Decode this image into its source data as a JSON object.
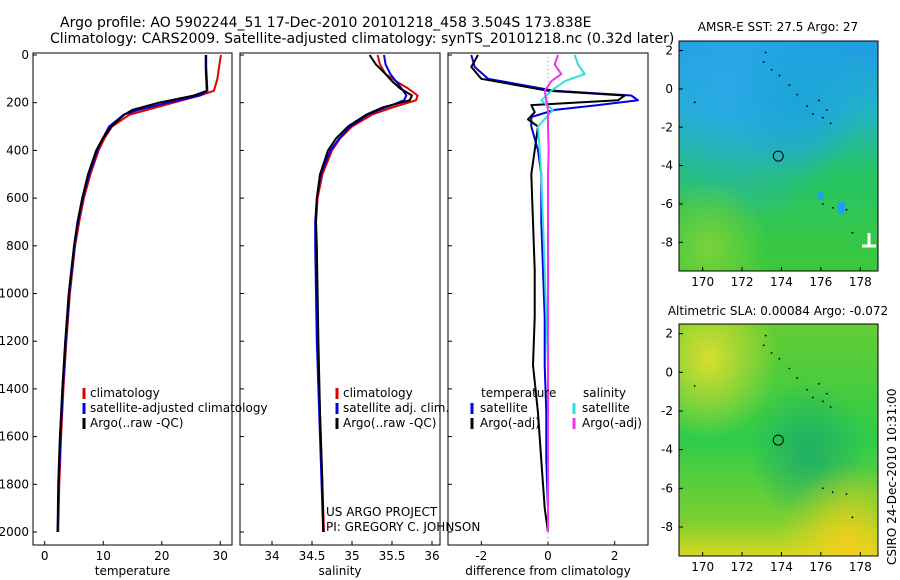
{
  "header": {
    "title_line1": "Argo profile: AO 5902244_51 17-Dec-2010 20101218_458 3.504S 173.838E",
    "title_line2": "Climatology: CARS2009. Satellite-adjusted climatology: synTS_20101218.nc (0.32d later)"
  },
  "credit": {
    "line1": "US ARGO PROJECT",
    "line2": "PI: GREGORY C. JOHNSON"
  },
  "footer_stamp": "CSIRO 24-Dec-2010 10:31:00",
  "colors": {
    "climatology": "#e00000",
    "satellite": "#0000e0",
    "argo": "#000000",
    "satellite_salinity": "#33dddd",
    "argo_salinity": "#ee33ee"
  },
  "chart_data": [
    {
      "type": "line",
      "name": "temperature-panel",
      "xlabel": "temperature",
      "ylabel": "",
      "xlim": [
        -2,
        32
      ],
      "ylim": [
        2050,
        0
      ],
      "xticks": [
        0,
        10,
        20,
        30
      ],
      "xtick_labels": [
        "0",
        "10",
        "20",
        "30"
      ],
      "yticks": [
        0,
        200,
        400,
        600,
        800,
        1000,
        1200,
        1400,
        1600,
        1800,
        2000
      ],
      "ytick_labels": [
        "0",
        "200",
        "400",
        "600",
        "800",
        "1000",
        "1200",
        "1400",
        "1600",
        "1800",
        "2000"
      ],
      "legend": [
        "climatology",
        "satellite-adjusted climatology",
        "Argo(..raw -QC)"
      ],
      "series": [
        {
          "name": "climatology",
          "color": "#e00000",
          "depth": [
            0,
            50,
            100,
            150,
            170,
            200,
            230,
            250,
            300,
            350,
            400,
            500,
            600,
            700,
            800,
            1000,
            1200,
            1400,
            1600,
            1800,
            2000
          ],
          "values": [
            30.1,
            29.8,
            29.5,
            28.9,
            26.5,
            22,
            17.5,
            14.5,
            11.5,
            10.2,
            9.2,
            7.8,
            6.7,
            5.9,
            5.2,
            4.3,
            3.7,
            3.2,
            2.8,
            2.5,
            2.3
          ]
        },
        {
          "name": "satellite",
          "color": "#0000e0",
          "depth": [
            0,
            50,
            100,
            150,
            170,
            200,
            230,
            250,
            300,
            350,
            400,
            500,
            600,
            700,
            800,
            1000,
            1200,
            1400,
            1600,
            1800,
            2000
          ],
          "values": [
            27.6,
            27.6,
            27.7,
            27.8,
            26.5,
            21,
            16,
            13.5,
            11,
            9.9,
            9,
            7.6,
            6.5,
            5.7,
            5.1,
            4.2,
            3.6,
            3.1,
            2.7,
            2.4,
            2.2
          ]
        },
        {
          "name": "Argo",
          "color": "#000000",
          "depth": [
            0,
            50,
            100,
            150,
            170,
            200,
            230,
            250,
            300,
            350,
            400,
            500,
            600,
            700,
            800,
            1000,
            1200,
            1400,
            1600,
            1800,
            2000
          ],
          "values": [
            27.5,
            27.5,
            27.6,
            27.7,
            25.5,
            19.5,
            15,
            13.6,
            11.4,
            9.9,
            8.8,
            7.4,
            6.4,
            5.6,
            5,
            4.1,
            3.5,
            3,
            2.6,
            2.3,
            2.2
          ]
        }
      ]
    },
    {
      "type": "line",
      "name": "salinity-panel",
      "xlabel": "salinity",
      "xlim": [
        33.6,
        36.1
      ],
      "ylim": [
        2050,
        0
      ],
      "xticks": [
        34,
        34.5,
        35,
        35.5,
        36
      ],
      "xtick_labels": [
        "34",
        "34.5",
        "35",
        "35.5",
        "36"
      ],
      "legend": [
        "climatology",
        "satellite adj. clim.",
        "Argo(..raw -QC)"
      ],
      "series": [
        {
          "name": "climatology",
          "color": "#e00000",
          "depth": [
            0,
            40,
            80,
            110,
            140,
            170,
            190,
            220,
            250,
            300,
            350,
            400,
            500,
            600,
            700,
            800,
            1000,
            1200,
            1500,
            1800,
            2000
          ],
          "values": [
            35.32,
            35.35,
            35.42,
            35.55,
            35.7,
            35.82,
            35.8,
            35.5,
            35.25,
            35.0,
            34.85,
            34.75,
            34.63,
            34.57,
            34.55,
            34.55,
            34.56,
            34.57,
            34.6,
            34.63,
            34.65
          ]
        },
        {
          "name": "satellite",
          "color": "#0000e0",
          "depth": [
            0,
            40,
            80,
            110,
            140,
            170,
            190,
            220,
            250,
            300,
            350,
            400,
            500,
            600,
            700,
            800,
            1000,
            1200,
            1500,
            1800,
            2000
          ],
          "values": [
            35.4,
            35.42,
            35.48,
            35.55,
            35.62,
            35.68,
            35.65,
            35.42,
            35.2,
            34.98,
            34.84,
            34.73,
            34.61,
            34.56,
            34.54,
            34.54,
            34.55,
            34.56,
            34.59,
            34.62,
            34.64
          ]
        },
        {
          "name": "Argo",
          "color": "#000000",
          "depth": [
            0,
            40,
            80,
            110,
            140,
            170,
            190,
            220,
            250,
            300,
            350,
            400,
            500,
            600,
            700,
            800,
            1000,
            1200,
            1500,
            1800,
            2000
          ],
          "values": [
            35.22,
            35.3,
            35.42,
            35.5,
            35.6,
            35.75,
            35.72,
            35.38,
            35.18,
            34.95,
            34.8,
            34.7,
            34.6,
            34.56,
            34.55,
            34.56,
            34.57,
            34.58,
            34.6,
            34.63,
            34.64
          ]
        }
      ]
    },
    {
      "type": "line",
      "name": "difference-panel",
      "xlabel": "difference from climatology",
      "xlim": [
        -3,
        3
      ],
      "ylim": [
        2050,
        0
      ],
      "xticks": [
        -2,
        0,
        2
      ],
      "xtick_labels": [
        "-2",
        "0",
        "2"
      ],
      "legend_headers": [
        "temperature",
        "salinity"
      ],
      "legend": [
        "satellite",
        "Argo(-adj)",
        "satellite",
        "Argo(-adj)"
      ],
      "series": [
        {
          "name": "temperature satellite",
          "color": "#0000e0",
          "depth": [
            0,
            50,
            100,
            150,
            170,
            190,
            210,
            230,
            260,
            300,
            400,
            500,
            700,
            900,
            1100,
            1300,
            1500,
            1700,
            1900,
            2000
          ],
          "values": [
            -2.3,
            -2.2,
            -1.8,
            0.2,
            2.5,
            2.7,
            1.5,
            0.2,
            -0.5,
            -0.5,
            -0.3,
            -0.2,
            -0.2,
            -0.15,
            -0.1,
            -0.1,
            -0.05,
            -0.05,
            0,
            0
          ]
        },
        {
          "name": "temperature Argo",
          "color": "#000000",
          "depth": [
            0,
            50,
            100,
            150,
            170,
            190,
            210,
            240,
            270,
            300,
            400,
            500,
            700,
            900,
            1100,
            1300,
            1500,
            1700,
            1900,
            2000
          ],
          "values": [
            -2.1,
            -2.3,
            -2.0,
            0.0,
            2.3,
            2.1,
            -0.5,
            -0.4,
            -0.6,
            -0.3,
            -0.4,
            -0.5,
            -0.45,
            -0.4,
            -0.4,
            -0.45,
            -0.3,
            -0.2,
            -0.1,
            0
          ]
        },
        {
          "name": "salinity satellite",
          "color": "#33dddd",
          "depth": [
            0,
            40,
            80,
            110,
            150,
            190,
            230,
            300,
            400,
            500,
            700,
            900,
            1100,
            1300,
            1500,
            1700,
            1900,
            2000
          ],
          "values": [
            0.8,
            0.9,
            1.1,
            0.5,
            0.1,
            -0.2,
            0.15,
            -0.3,
            -0.25,
            -0.2,
            -0.15,
            -0.1,
            -0.05,
            0,
            0,
            0,
            0,
            0
          ]
        },
        {
          "name": "salinity Argo",
          "color": "#ee33ee",
          "depth": [
            0,
            40,
            80,
            110,
            150,
            190,
            230,
            300,
            400,
            500,
            700,
            900,
            1100,
            1300,
            1500,
            1700,
            1900,
            2000
          ],
          "values": [
            0.3,
            0.2,
            0.4,
            0.1,
            -0.1,
            -0.05,
            0.0,
            0.0,
            0.02,
            0.0,
            0.0,
            0.0,
            0.0,
            0.0,
            0.0,
            0.0,
            0.0,
            0.0
          ]
        }
      ]
    },
    {
      "type": "heatmap",
      "name": "sst-map",
      "title": "AMSR-E SST: 27.5 Argo: 27",
      "xlim": [
        168.8,
        178.9
      ],
      "ylim": [
        -9.5,
        2.5
      ],
      "xticks": [
        170,
        172,
        174,
        176,
        178
      ],
      "xtick_labels": [
        "170",
        "172",
        "174",
        "176",
        "178"
      ],
      "yticks": [
        2,
        0,
        -2,
        -4,
        -6,
        -8
      ],
      "ytick_labels": [
        "2",
        "0",
        "-2",
        "-4",
        "-6",
        "-8"
      ],
      "float_position": [
        173.838,
        -3.504
      ]
    },
    {
      "type": "heatmap",
      "name": "sla-map",
      "title": "Altimetric SLA: 0.00084 Argo: -0.072",
      "xlim": [
        168.8,
        178.9
      ],
      "ylim": [
        -9.5,
        2.5
      ],
      "xticks": [
        170,
        172,
        174,
        176,
        178
      ],
      "xtick_labels": [
        "170",
        "172",
        "174",
        "176",
        "178"
      ],
      "yticks": [
        2,
        0,
        -2,
        -4,
        -6,
        -8
      ],
      "ytick_labels": [
        "2",
        "0",
        "-2",
        "-4",
        "-6",
        "-8"
      ],
      "float_position": [
        173.838,
        -3.504
      ]
    }
  ]
}
